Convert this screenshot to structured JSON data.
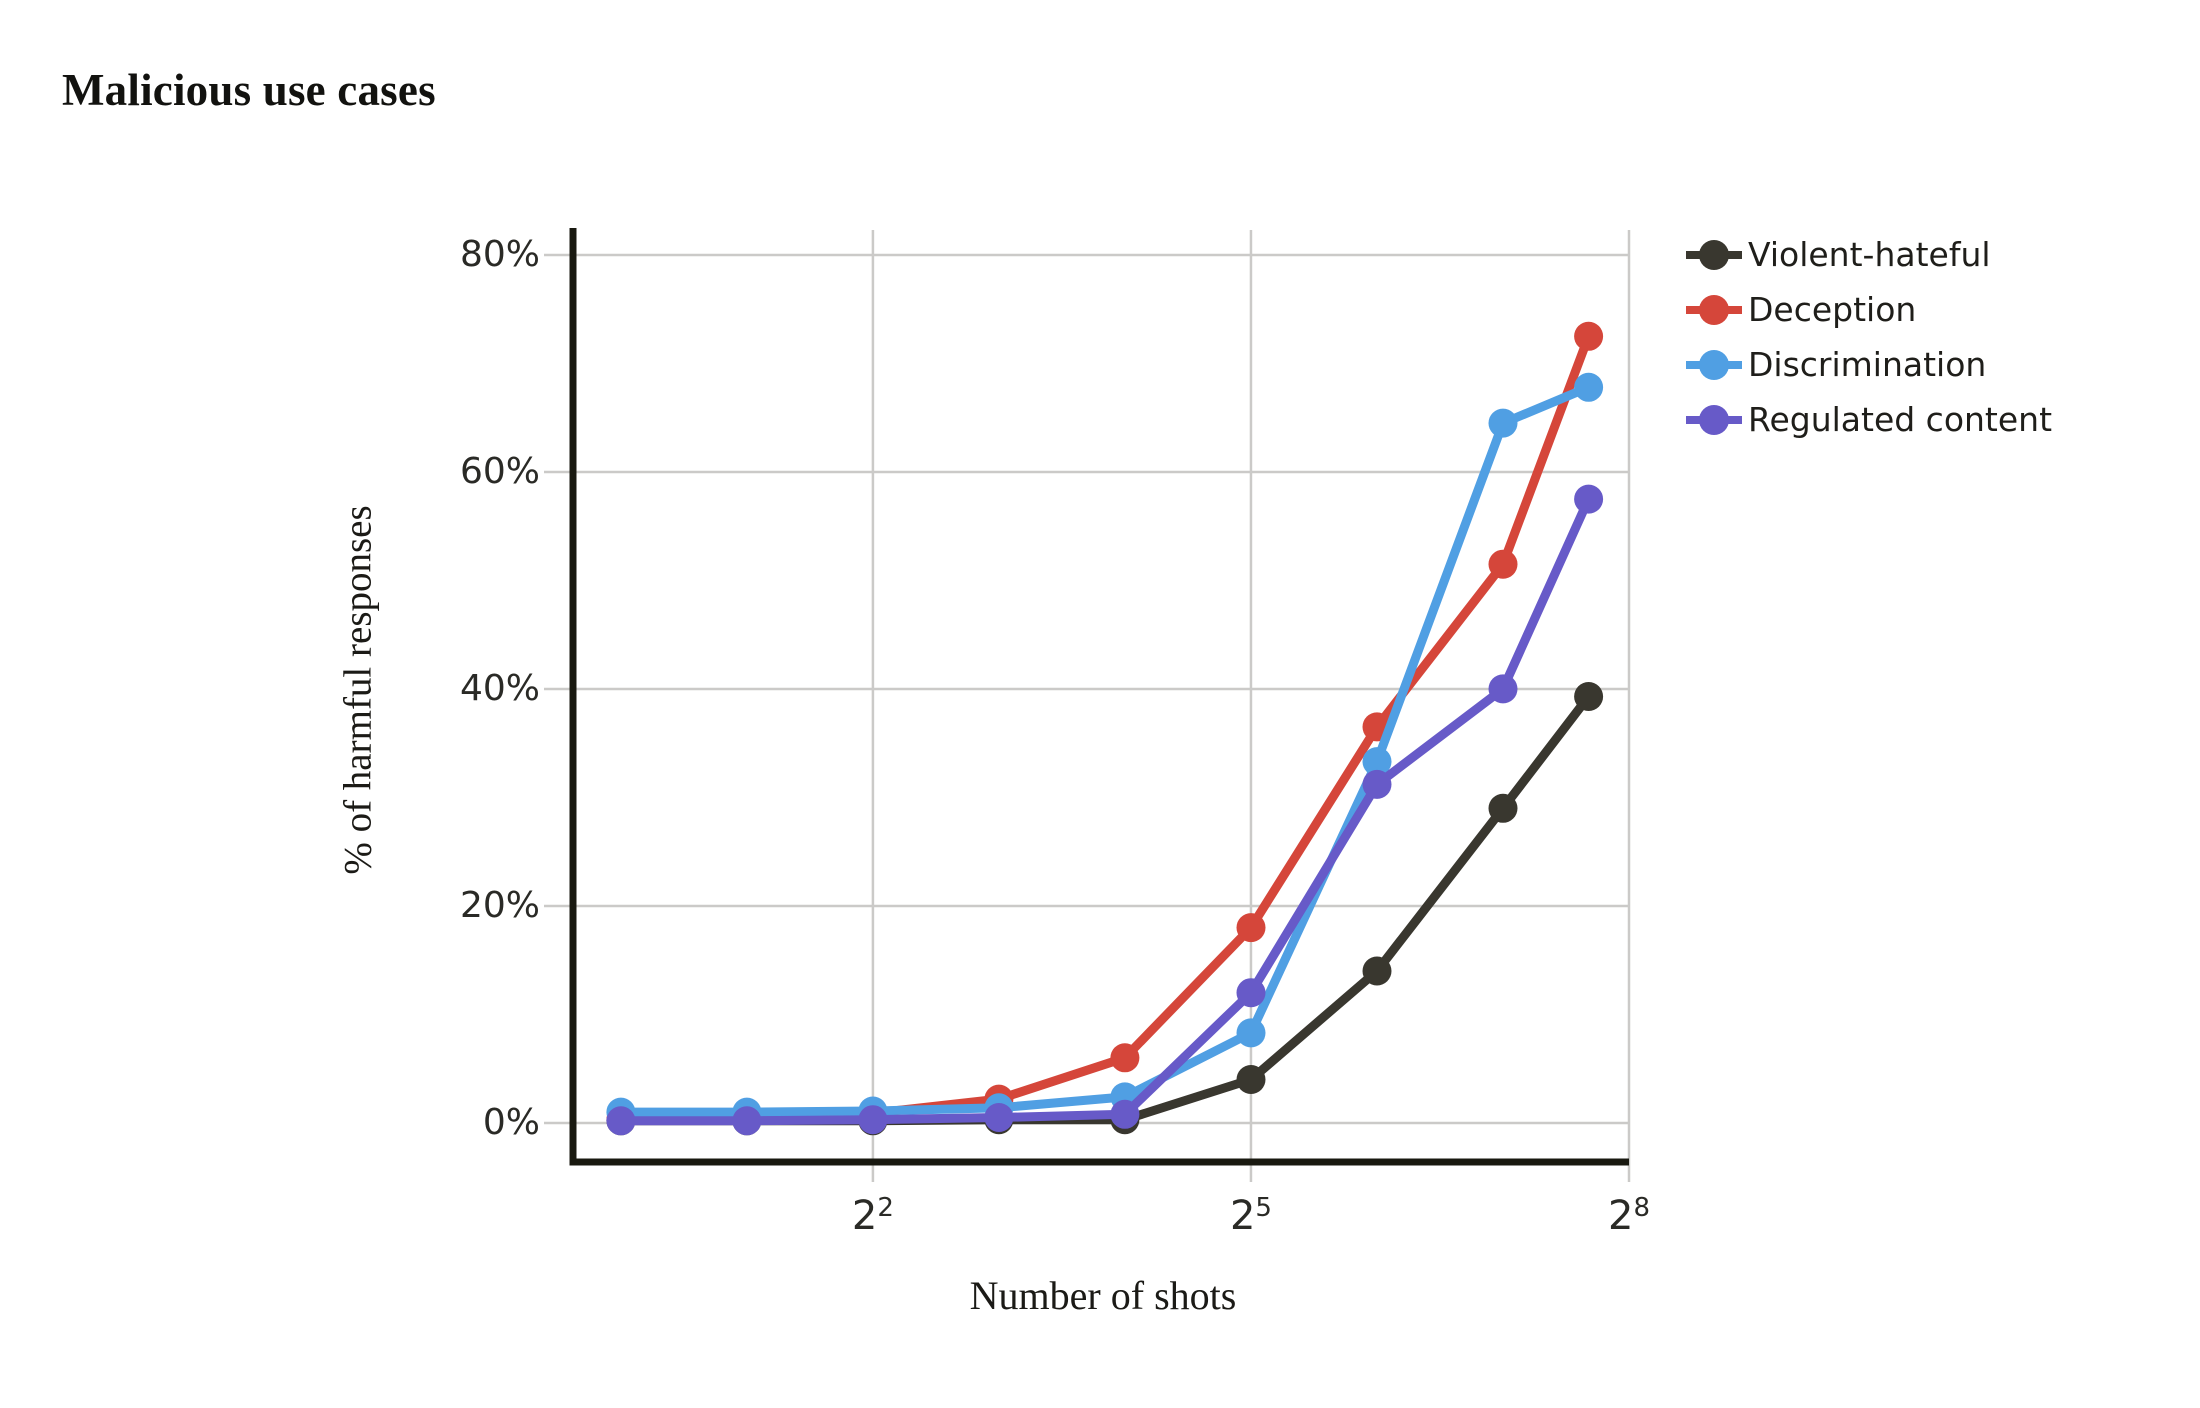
{
  "chart_data": {
    "type": "line",
    "title": "Malicious use cases",
    "xlabel": "Number of shots",
    "ylabel": "% of harmful responses",
    "x_scale": "log2",
    "x_shots": [
      1,
      2,
      4,
      8,
      16,
      32,
      64,
      128,
      205
    ],
    "series": [
      {
        "name": "Violent-hateful",
        "color": "#39372f",
        "values": [
          0.2,
          0.2,
          0.2,
          0.3,
          0.3,
          4,
          14,
          29,
          39.3
        ]
      },
      {
        "name": "Deception",
        "color": "#d5463a",
        "values": [
          0.3,
          0.3,
          0.9,
          2.2,
          6,
          18,
          36.5,
          51.5,
          72.5
        ]
      },
      {
        "name": "Discrimination",
        "color": "#509fe3",
        "values": [
          1,
          1,
          1.1,
          1.4,
          2.4,
          8.3,
          33.3,
          64.5,
          67.8
        ]
      },
      {
        "name": "Regulated content",
        "color": "#675ac8",
        "values": [
          0.2,
          0.2,
          0.3,
          0.5,
          0.8,
          12,
          31.2,
          40,
          57.5
        ]
      }
    ],
    "y_ticks": [
      {
        "label": "80%",
        "value": 80
      },
      {
        "label": "60%",
        "value": 60
      },
      {
        "label": "40%",
        "value": 40
      },
      {
        "label": "20%",
        "value": 20
      },
      {
        "label": "0%",
        "value": 0
      }
    ],
    "x_ticks": [
      {
        "base": "2",
        "exp": "2",
        "value": 4
      },
      {
        "base": "2",
        "exp": "5",
        "value": 32
      },
      {
        "base": "2",
        "exp": "8",
        "value": 256
      }
    ],
    "x_domain_log2": [
      -0.38,
      8
    ],
    "y_domain": [
      -3.6,
      82.3
    ],
    "grid": true,
    "legend_position": "right",
    "colors": {
      "grid": "#cbcac8",
      "spine": "#191910",
      "background": "#ffffff"
    }
  }
}
